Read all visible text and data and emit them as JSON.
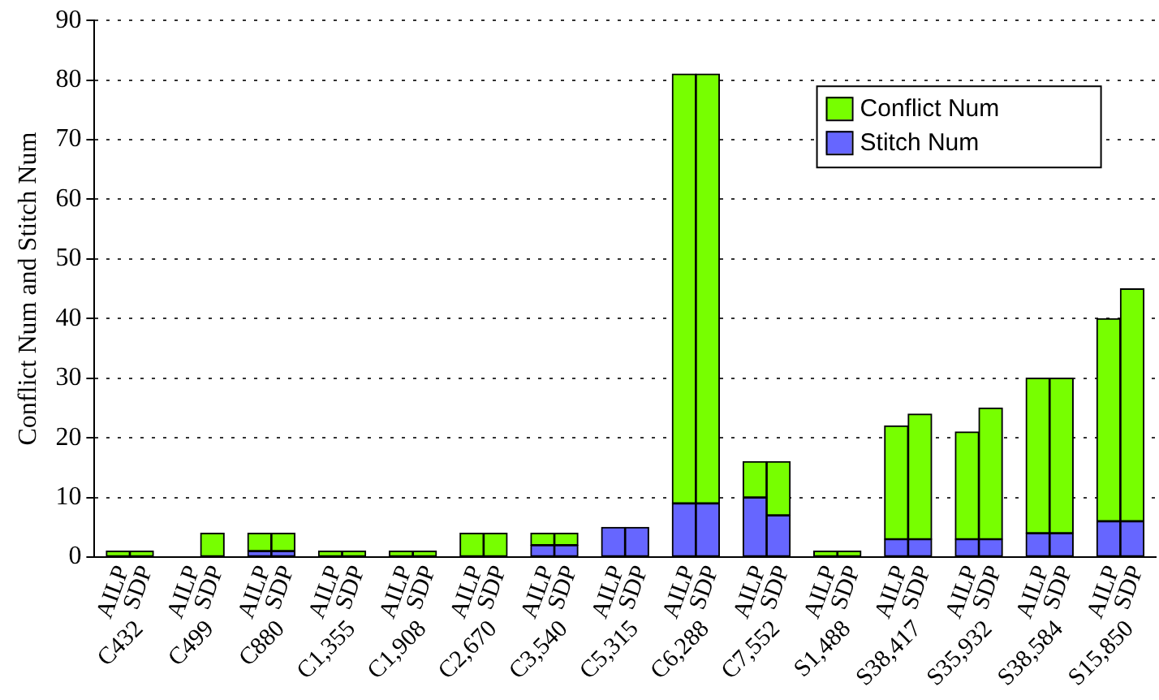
{
  "chart_data": {
    "type": "bar",
    "stacked": true,
    "ylabel": "Conflict Num and Stitch Num",
    "categories": [
      "AILP",
      "SDP",
      "AILP",
      "SDP",
      "AILP",
      "SDP",
      "AILP",
      "SDP",
      "AILP",
      "SDP",
      "AILP",
      "SDP",
      "AILP",
      "SDP",
      "AILP",
      "SDP",
      "AILP",
      "SDP",
      "AILP",
      "SDP",
      "AILP",
      "SDP",
      "AILP",
      "SDP",
      "AILP",
      "SDP",
      "AILP",
      "SDP",
      "AILP",
      "SDP"
    ],
    "series": [
      {
        "name": "Stitch Num",
        "color": "#6666ff",
        "values": [
          0,
          0,
          0,
          0,
          1,
          1,
          0,
          0,
          0,
          0,
          0,
          0,
          2,
          2,
          5,
          5,
          9,
          9,
          10,
          7,
          0,
          0,
          3,
          3,
          3,
          3,
          4,
          4,
          6,
          6
        ]
      },
      {
        "name": "Conflict Num",
        "color": "#77ff00",
        "values": [
          1,
          1,
          0,
          4,
          3,
          3,
          1,
          1,
          1,
          1,
          4,
          4,
          2,
          2,
          0,
          0,
          72,
          72,
          6,
          9,
          1,
          1,
          19,
          21,
          18,
          22,
          26,
          26,
          34,
          39
        ]
      }
    ],
    "annotations": [
      "C432",
      "C499",
      "C880",
      "C1,355",
      "C1,908",
      "C2,670",
      "C3,540",
      "C5,315",
      "C6,288",
      "C7,552",
      "S1,488",
      "S38,417",
      "S35,932",
      "S38,584",
      "S15,850"
    ],
    "ylim": [
      0,
      90
    ],
    "yticks": [
      0,
      10,
      20,
      30,
      40,
      50,
      60,
      70,
      80,
      90
    ],
    "grid": "y",
    "legend": "top right"
  }
}
